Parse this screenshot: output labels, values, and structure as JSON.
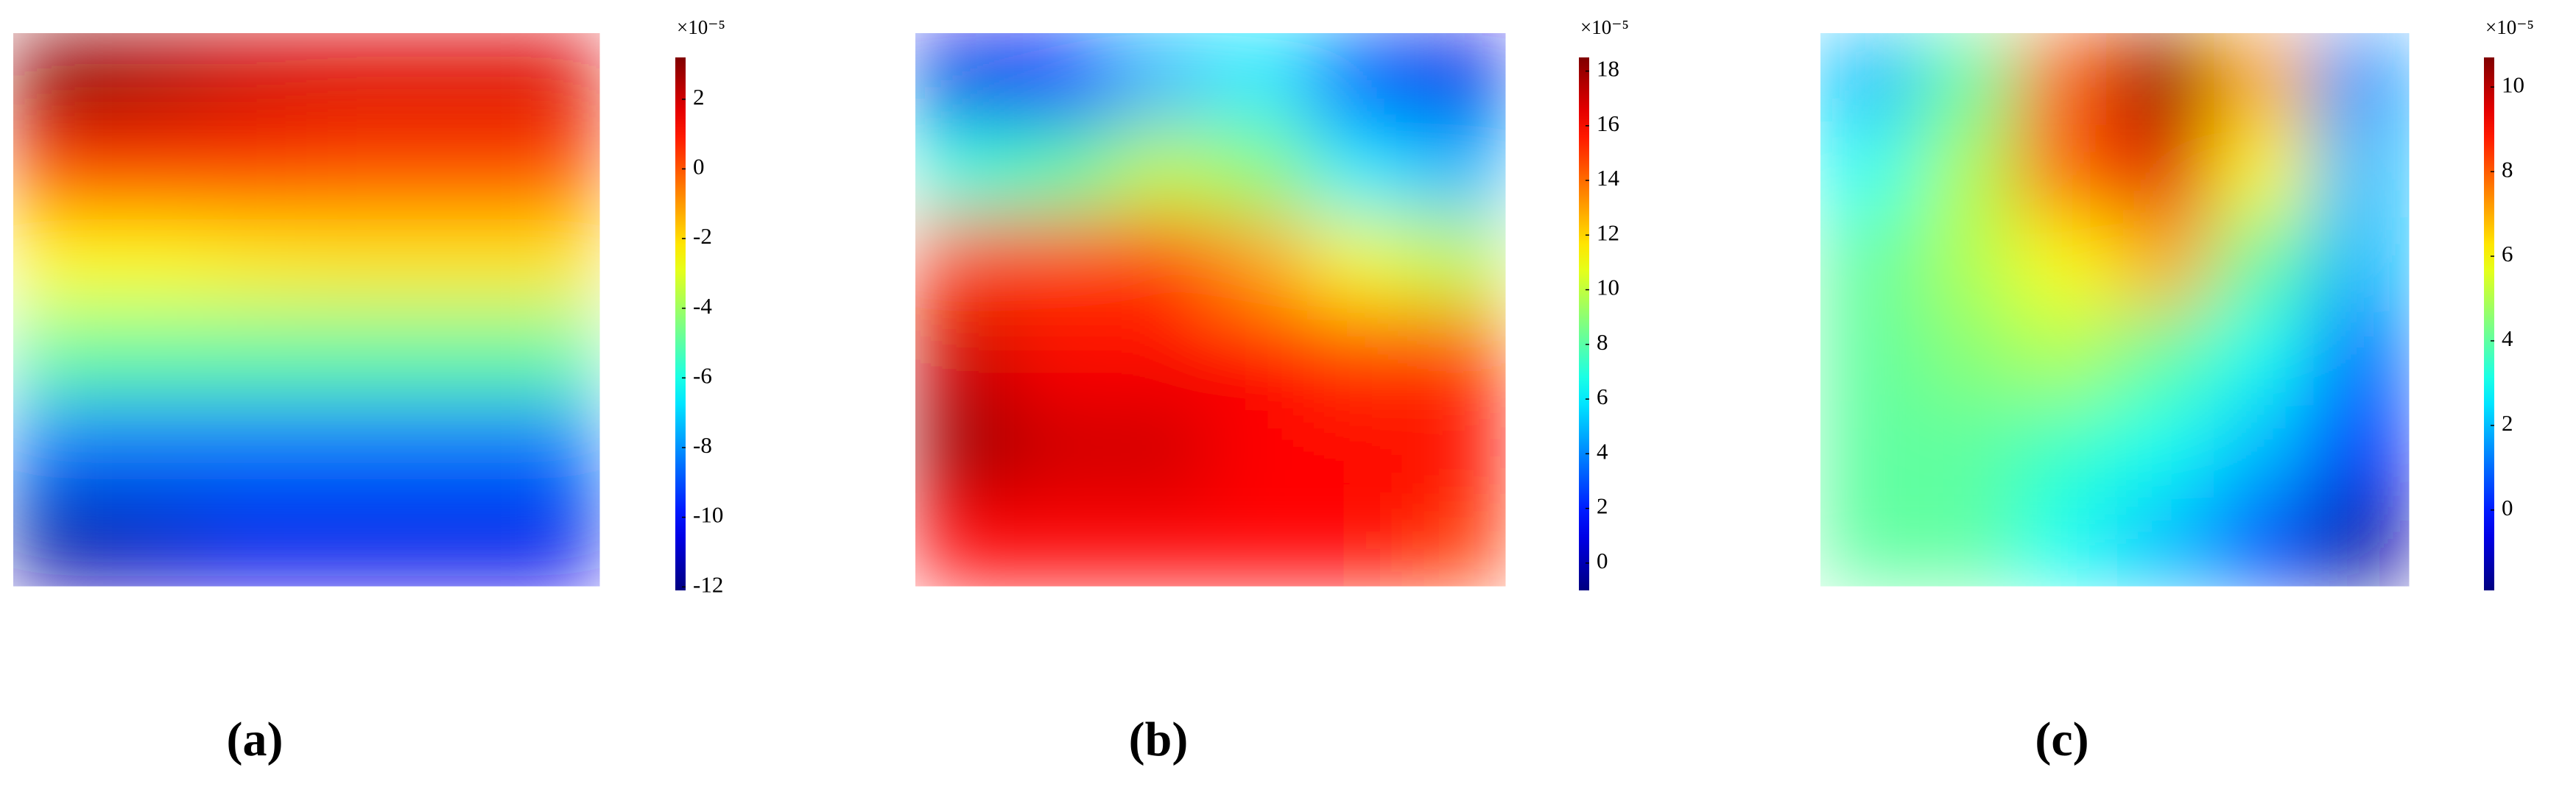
{
  "chart_data": [
    {
      "type": "heatmap",
      "label": "(a)",
      "colorbar_label": "×10⁻⁵",
      "colormap": "jet",
      "values": [
        [
          3.0,
          2.5,
          2.0,
          1.8,
          1.8,
          1.8
        ],
        [
          0.5,
          0.5,
          0.5,
          0.3,
          0.3,
          0.3
        ],
        [
          -2.5,
          -2.5,
          -2.3,
          -2.2,
          -2.2,
          -2.2
        ],
        [
          -5,
          -5,
          -5,
          -5,
          -5,
          -5
        ],
        [
          -8.5,
          -8.5,
          -8.5,
          -8.5,
          -8.5,
          -8.5
        ],
        [
          -11.5,
          -11,
          -10.5,
          -10.5,
          -10.5,
          -10.5
        ]
      ],
      "ylim": [
        -12.1,
        3.2
      ],
      "yticks": [
        -12,
        -10,
        -8,
        -6,
        -4,
        -2,
        0,
        2
      ]
    },
    {
      "type": "heatmap",
      "label": "(b)",
      "colorbar_label": "×10⁻⁵",
      "colormap": "jet",
      "values": [
        [
          1,
          2,
          5,
          6,
          3,
          1
        ],
        [
          7,
          8,
          10,
          9,
          6,
          5
        ],
        [
          15,
          15,
          15,
          13,
          11,
          10
        ],
        [
          17,
          16,
          16,
          16,
          15,
          15
        ],
        [
          18,
          17,
          17,
          16,
          16,
          16
        ],
        [
          16,
          16,
          16,
          16,
          16,
          15
        ]
      ],
      "ylim": [
        -1,
        18.5
      ],
      "yticks": [
        0,
        2,
        4,
        6,
        8,
        10,
        12,
        14,
        16,
        18
      ]
    },
    {
      "type": "heatmap",
      "label": "(c)",
      "colorbar_label": "×10⁻⁵",
      "colormap": "jet",
      "values": [
        [
          2,
          4,
          8,
          10.5,
          7,
          1.5
        ],
        [
          3,
          5,
          8,
          9.5,
          6,
          2
        ],
        [
          4,
          5,
          6,
          7,
          4,
          2
        ],
        [
          4,
          4.5,
          5,
          4,
          3,
          1
        ],
        [
          4,
          4,
          3.5,
          3,
          2,
          0
        ],
        [
          4,
          4,
          3,
          2,
          0.5,
          -1.5
        ]
      ],
      "ylim": [
        -1.9,
        10.7
      ],
      "yticks": [
        0,
        2,
        4,
        6,
        8,
        10
      ]
    }
  ]
}
